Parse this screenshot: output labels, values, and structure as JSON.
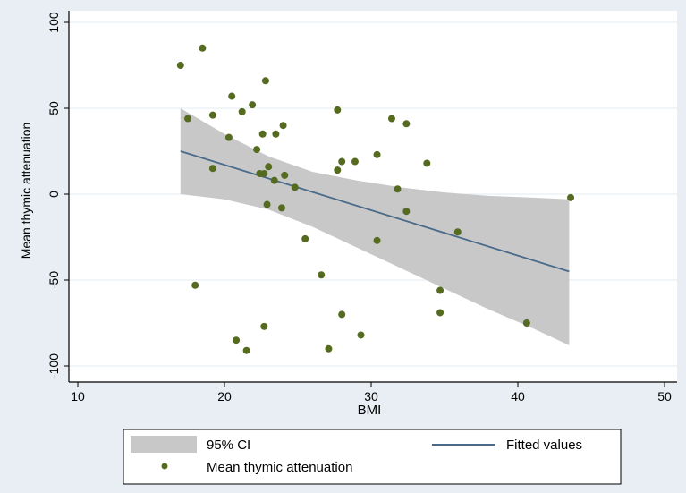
{
  "chart_data": {
    "type": "scatter",
    "title": "",
    "xlabel": "BMI",
    "ylabel": "Mean thymic attenuation",
    "xlim": [
      10,
      50
    ],
    "ylim": [
      -100,
      100
    ],
    "xticks": [
      10,
      20,
      30,
      40,
      50
    ],
    "yticks": [
      -100,
      -50,
      0,
      50,
      100
    ],
    "grid": true,
    "legend_position": "bottom",
    "colors": {
      "scatter": "#556b1f",
      "fit_line": "#4a6a8a",
      "ci_band": "#c8c8c8",
      "plot_bg": "#ffffff",
      "outer_bg": "#e8eef4",
      "grid": "#e6ebf0"
    },
    "series": [
      {
        "name": "Mean thymic attenuation",
        "kind": "scatter",
        "points": [
          [
            17.0,
            75
          ],
          [
            18.5,
            85
          ],
          [
            17.5,
            44
          ],
          [
            19.2,
            46
          ],
          [
            19.2,
            15
          ],
          [
            18.0,
            -53
          ],
          [
            20.3,
            33
          ],
          [
            20.5,
            57
          ],
          [
            21.2,
            48
          ],
          [
            21.9,
            52
          ],
          [
            22.2,
            26
          ],
          [
            22.4,
            12
          ],
          [
            22.6,
            35
          ],
          [
            22.7,
            12
          ],
          [
            22.8,
            66
          ],
          [
            23.0,
            16
          ],
          [
            23.4,
            8
          ],
          [
            23.5,
            35
          ],
          [
            24.0,
            40
          ],
          [
            24.1,
            11
          ],
          [
            23.9,
            -8
          ],
          [
            22.9,
            -6
          ],
          [
            24.8,
            4
          ],
          [
            25.5,
            -26
          ],
          [
            20.8,
            -85
          ],
          [
            21.5,
            -91
          ],
          [
            22.7,
            -77
          ],
          [
            26.6,
            -47
          ],
          [
            27.1,
            -90
          ],
          [
            27.7,
            49
          ],
          [
            27.7,
            14
          ],
          [
            28.0,
            19
          ],
          [
            28.9,
            19
          ],
          [
            30.4,
            23
          ],
          [
            31.4,
            44
          ],
          [
            31.8,
            3
          ],
          [
            32.4,
            -10
          ],
          [
            32.4,
            41
          ],
          [
            33.8,
            18
          ],
          [
            28.0,
            -70
          ],
          [
            29.3,
            -82
          ],
          [
            30.4,
            -27
          ],
          [
            34.7,
            -56
          ],
          [
            34.7,
            -69
          ],
          [
            35.9,
            -22
          ],
          [
            40.6,
            -75
          ],
          [
            43.6,
            -2
          ]
        ]
      },
      {
        "name": "Fitted values",
        "kind": "line",
        "points": [
          [
            17.0,
            25
          ],
          [
            43.5,
            -45
          ]
        ]
      },
      {
        "name": "95% CI",
        "kind": "band",
        "upper": [
          [
            17.0,
            50
          ],
          [
            20.0,
            35
          ],
          [
            23.0,
            22
          ],
          [
            26.0,
            13
          ],
          [
            29.0,
            8
          ],
          [
            32.0,
            4
          ],
          [
            35.0,
            1
          ],
          [
            38.0,
            -1
          ],
          [
            41.0,
            -2
          ],
          [
            43.5,
            -3
          ]
        ],
        "lower": [
          [
            17.0,
            0
          ],
          [
            20.0,
            -3
          ],
          [
            23.0,
            -9
          ],
          [
            26.0,
            -19
          ],
          [
            29.0,
            -31
          ],
          [
            32.0,
            -43
          ],
          [
            35.0,
            -55
          ],
          [
            38.0,
            -67
          ],
          [
            41.0,
            -78
          ],
          [
            43.5,
            -88
          ]
        ]
      }
    ],
    "legend": {
      "ci_label": "95% CI",
      "fit_label": "Fitted values",
      "scatter_label": "Mean thymic attenuation"
    }
  }
}
